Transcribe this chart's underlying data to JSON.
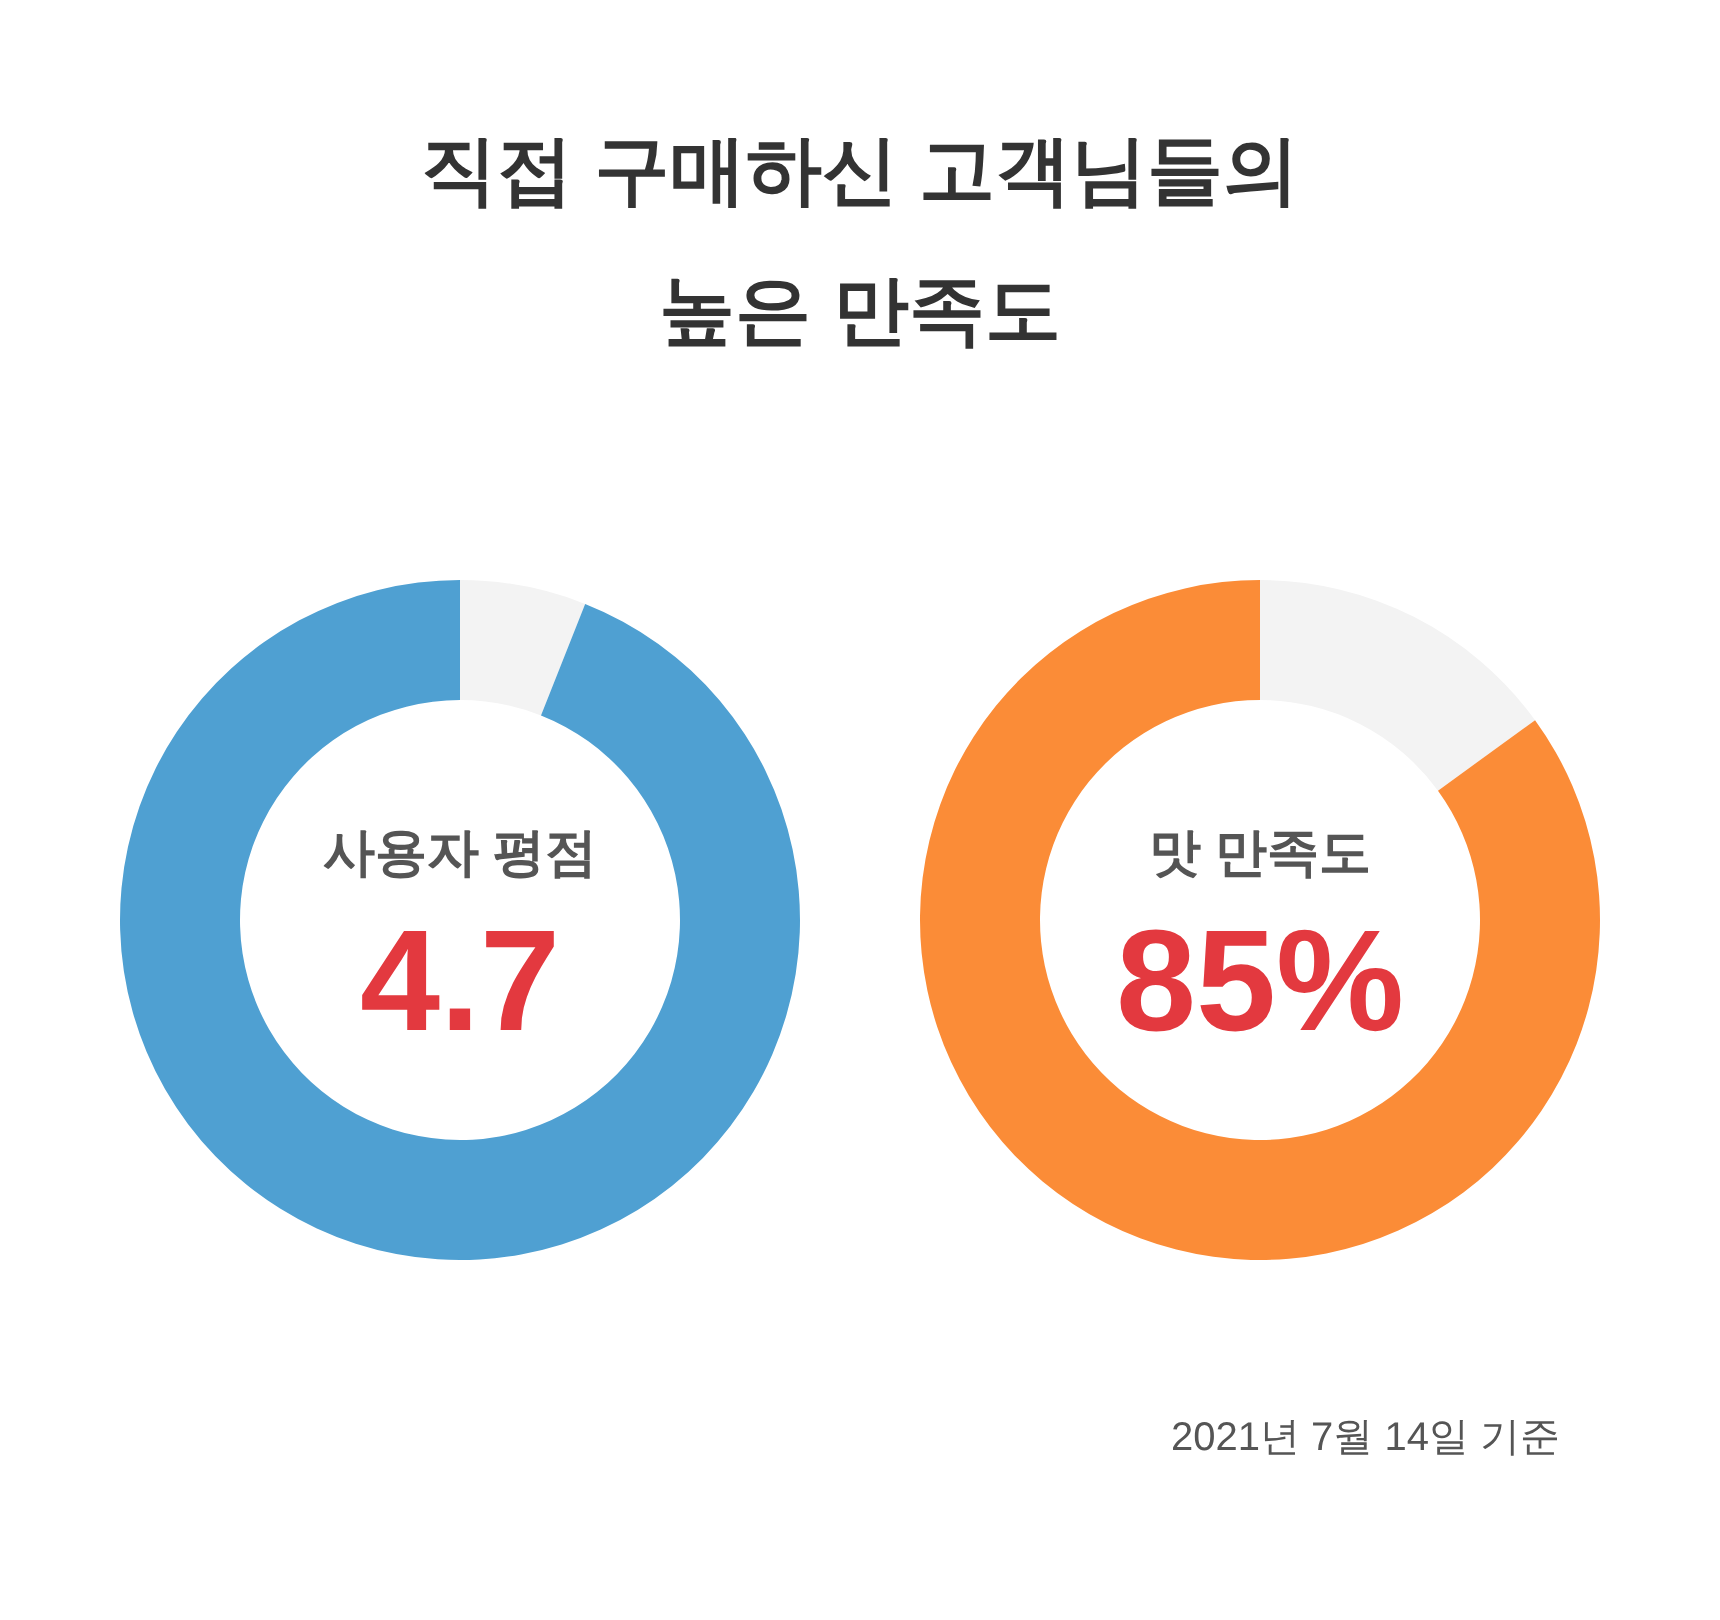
{
  "chart_data": [
    {
      "type": "other",
      "title": "직접 구매하신 고객님들의\n높은 만족도"
    },
    {
      "type": "donut",
      "title": "사용자 평점",
      "categories": [
        null,
        null
      ],
      "values": [
        0.3,
        4.7
      ],
      "colors": [
        "#f3f3f3",
        "#4fa0d2"
      ],
      "value_labels": [
        null,
        "4.7"
      ]
    },
    {
      "type": "donut",
      "title": "맛 만족도",
      "categories": [
        null,
        null
      ],
      "values": [
        15,
        85
      ],
      "colors": [
        "#f3f3f3",
        "#fb8c37"
      ],
      "value_labels": [
        null,
        "85%"
      ],
      "annotations": [
        "2021년 7월 14일 기준"
      ]
    }
  ]
}
